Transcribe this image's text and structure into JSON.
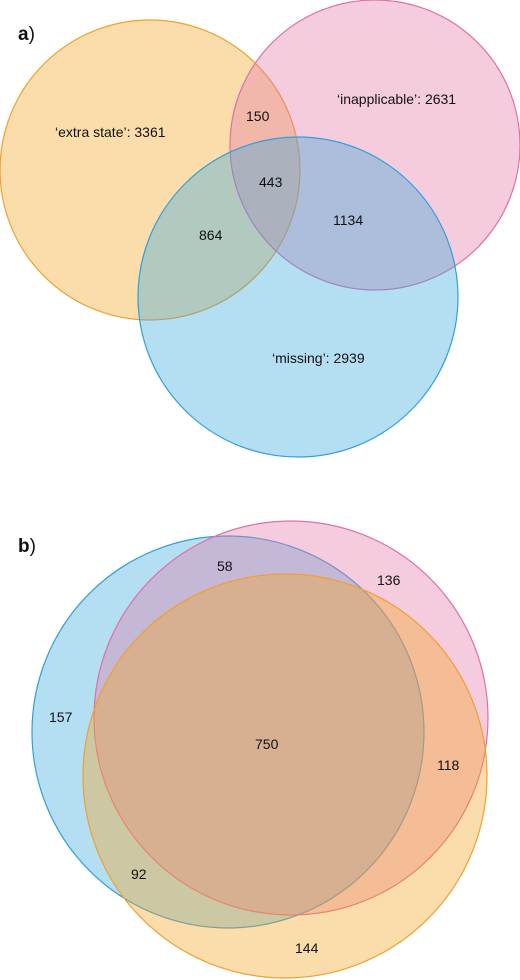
{
  "panel_a": {
    "label_letter": "a",
    "label_paren": ")",
    "sets": {
      "extra_state": "‘extra state’: 3361",
      "inapplicable": "‘inapplicable’: 2631",
      "missing": "‘missing’: 2939"
    },
    "intersections": {
      "extra_inapplicable": "150",
      "all_three": "443",
      "extra_missing": "864",
      "inapplicable_missing": "1134"
    },
    "colors": {
      "extra_state": "#f5a623",
      "inapplicable": "#e378a8",
      "missing": "#3aa8de"
    }
  },
  "panel_b": {
    "label_letter": "b",
    "label_paren": ")",
    "regions": {
      "blue_pink": "58",
      "pink_only": "136",
      "blue_only": "157",
      "center": "750",
      "pink_orange": "118",
      "blue_orange": "92",
      "orange_only": "144"
    },
    "colors": {
      "blue": "#3aa8de",
      "pink": "#e378a8",
      "orange": "#f5a623"
    }
  }
}
